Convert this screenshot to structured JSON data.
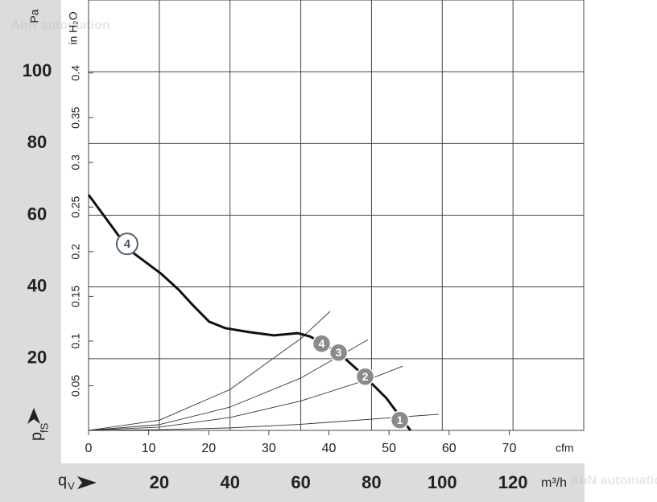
{
  "chart_data": {
    "type": "line",
    "y_label": "Pa",
    "y2_label": "in H₂O",
    "y_axis_symbol": "p",
    "y_axis_symbol_sub": "fS",
    "x_axis_symbol": "q",
    "x_axis_symbol_sub": "V",
    "x_unit": "m³/h",
    "x2_unit": "cfm",
    "watermark": "AbN automation",
    "xlim": [
      0,
      140
    ],
    "xticks": [
      20,
      40,
      60,
      80,
      100,
      120
    ],
    "ylim": [
      0,
      120
    ],
    "yticks": [
      20,
      40,
      60,
      80,
      100
    ],
    "x2lim": [
      0,
      82.4
    ],
    "x2ticks": [
      0,
      10,
      20,
      30,
      40,
      50,
      60,
      70
    ],
    "y2lim": [
      0,
      0.4817
    ],
    "y2ticks": [
      0.05,
      0.1,
      0.15,
      0.2,
      0.25,
      0.3,
      0.35,
      0.4
    ],
    "grid": true,
    "series": [
      {
        "name": "4",
        "color": "#111111",
        "x": [
          0,
          11.4,
          20.5,
          25.5,
          29.6,
          34.1,
          38.7,
          45.5,
          52.4,
          59.2,
          62.6,
          70.6,
          77.4,
          84.2,
          88.8,
          91
        ],
        "values": [
          65.7,
          50.4,
          43.7,
          39.2,
          34.8,
          30.3,
          28.5,
          27.4,
          26.5,
          27.1,
          26.2,
          21.7,
          15.7,
          9.0,
          2.9,
          0
        ]
      },
      {
        "color": "#333333",
        "x": [
          0,
          20,
          40,
          60,
          68.3
        ],
        "values": [
          0,
          2.85,
          11.4,
          25.6,
          33.2
        ]
      },
      {
        "color": "#333333",
        "x": [
          0,
          20,
          40,
          60,
          79
        ],
        "values": [
          0,
          1.6,
          6.5,
          14.6,
          25.3
        ]
      },
      {
        "color": "#333333",
        "x": [
          0,
          20,
          40,
          60,
          80,
          88.8
        ],
        "values": [
          0,
          0.9,
          3.6,
          8.2,
          14.5,
          17.9
        ]
      },
      {
        "color": "#333333",
        "x": [
          0,
          20,
          40,
          60,
          99
        ],
        "values": [
          0,
          0.2,
          0.7,
          1.7,
          4.5
        ]
      }
    ],
    "annotations": [
      {
        "label": "4",
        "x": 10.9,
        "y": 52.0,
        "style": "outline"
      },
      {
        "label": "4",
        "x": 65.9,
        "y": 24.2,
        "style": "filled"
      },
      {
        "label": "3",
        "x": 70.7,
        "y": 21.7,
        "style": "filled"
      },
      {
        "label": "2",
        "x": 78.2,
        "y": 15.0,
        "style": "filled"
      },
      {
        "label": "1",
        "x": 88.0,
        "y": 2.9,
        "style": "filled"
      }
    ]
  }
}
